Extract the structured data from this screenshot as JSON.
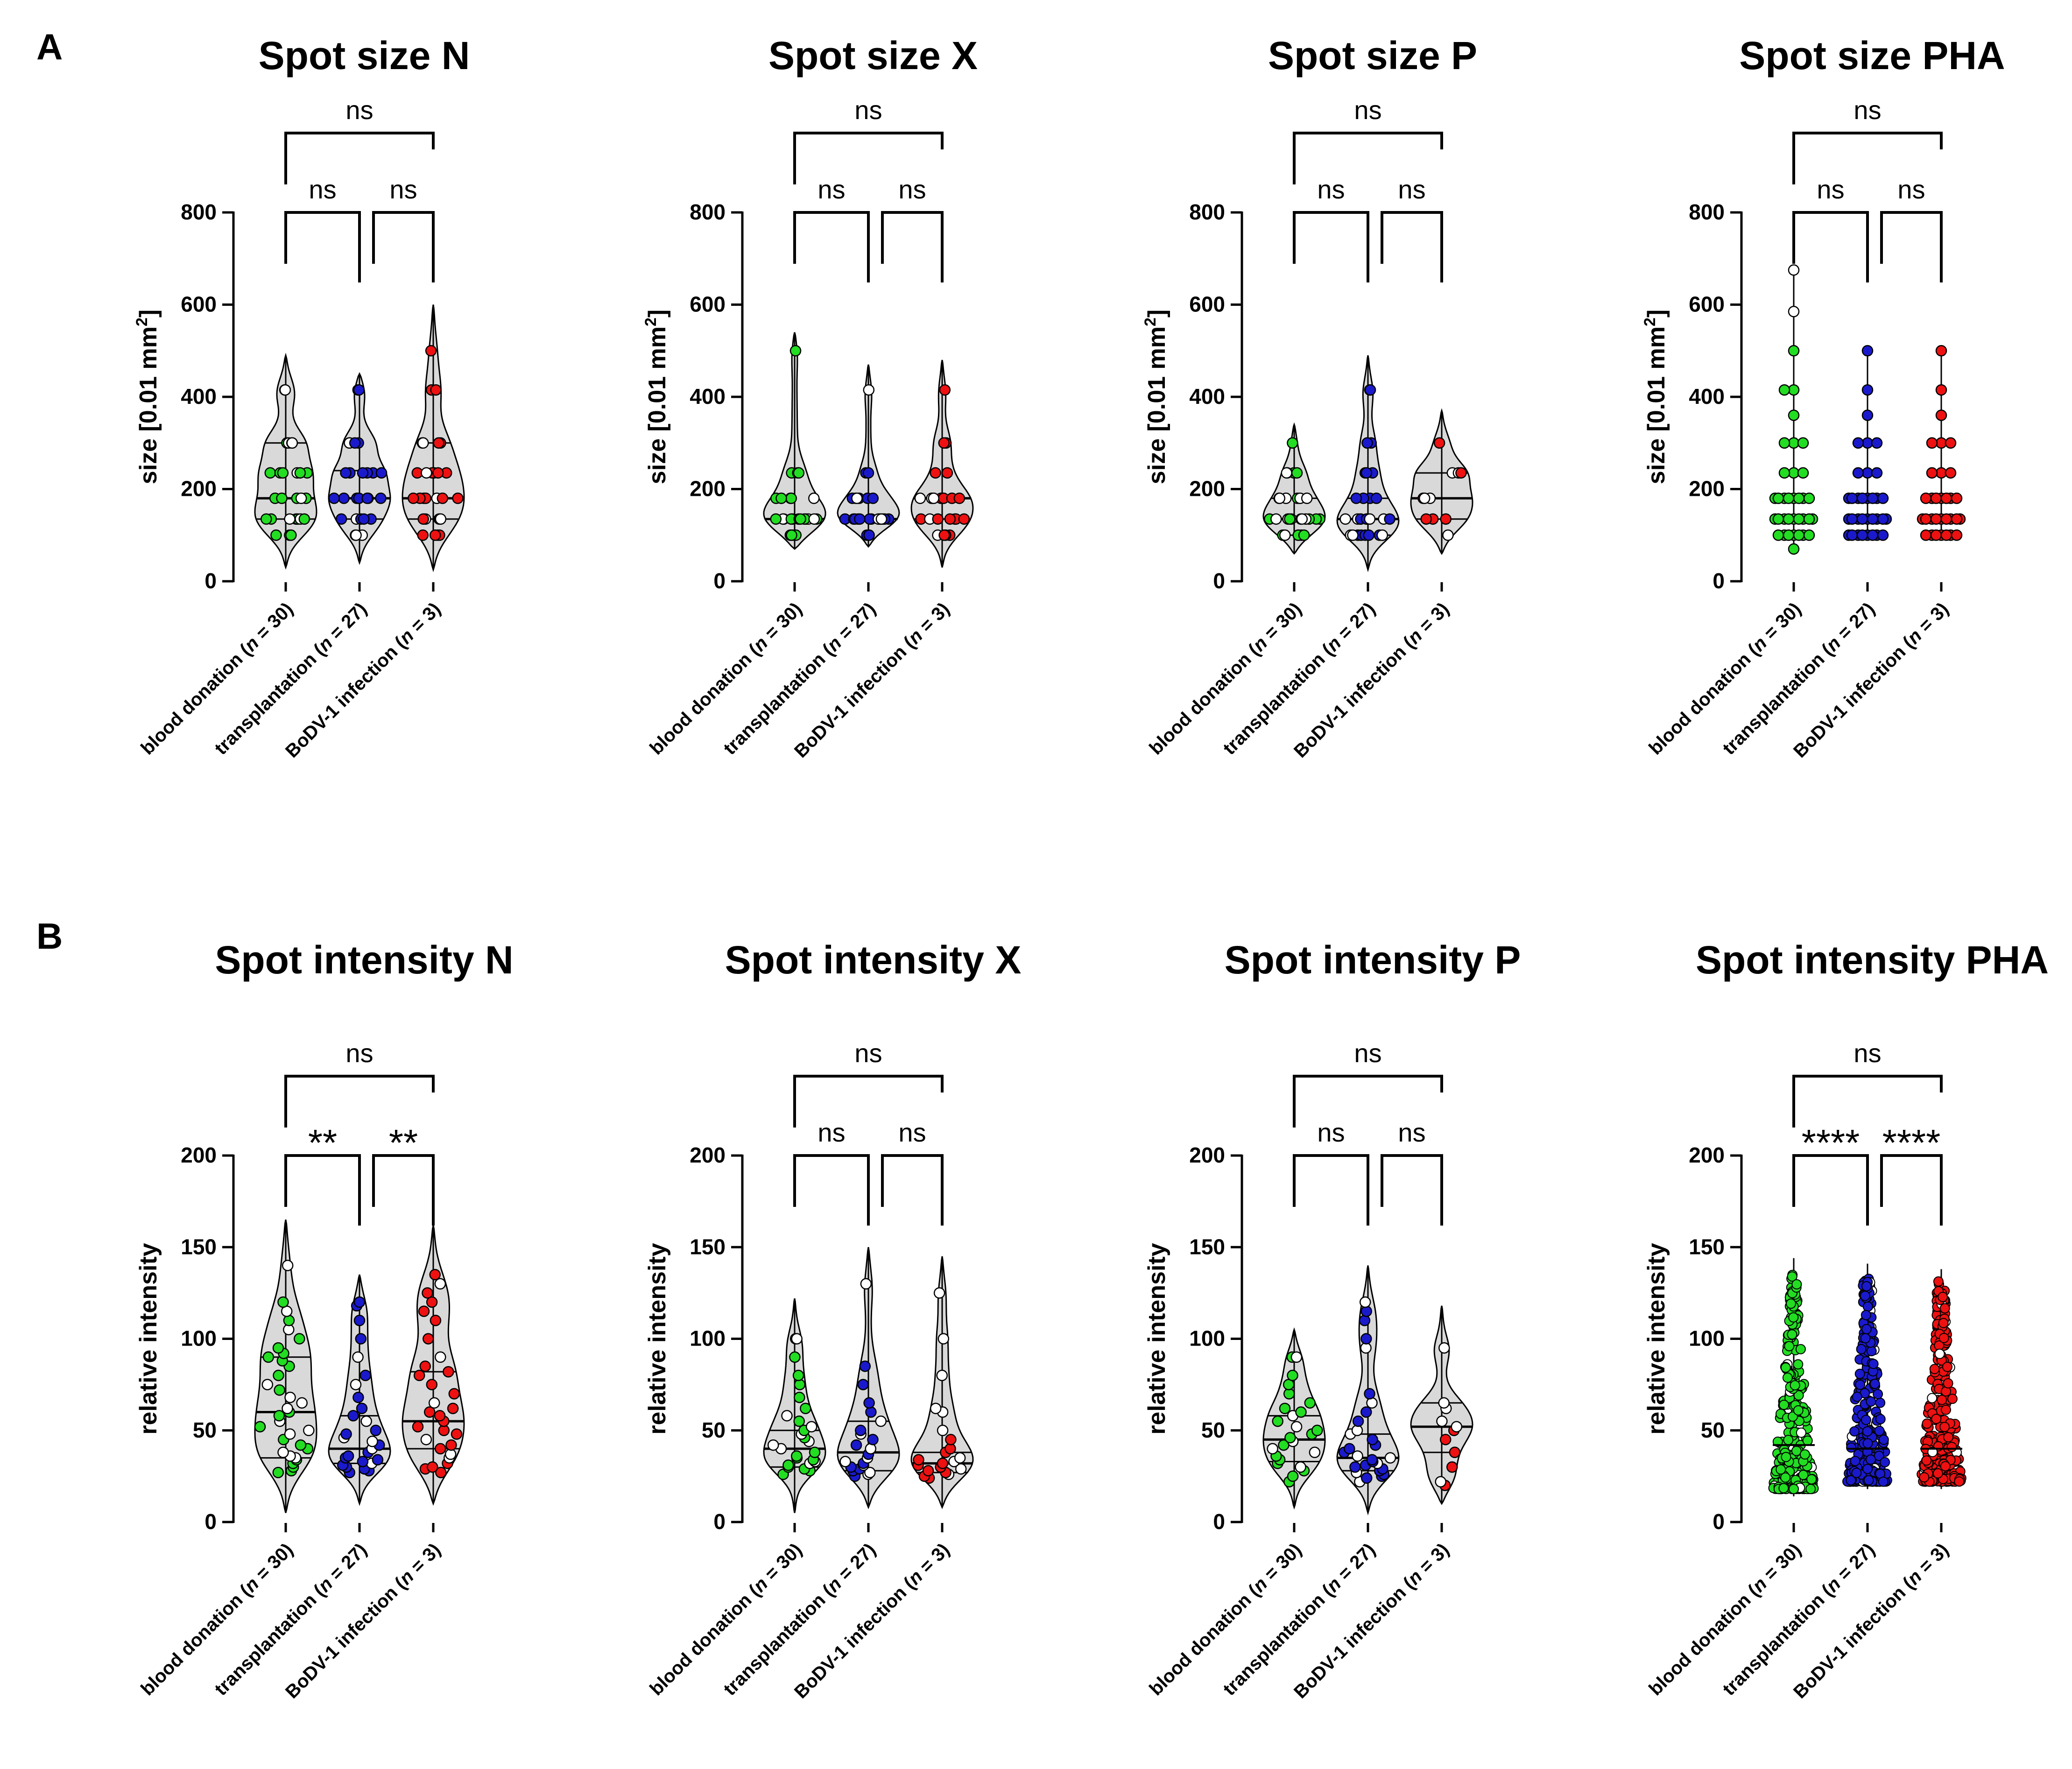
{
  "panels": [
    {
      "letter": "A"
    },
    {
      "letter": "B"
    }
  ],
  "group_colors": [
    "#22dd22",
    "#1a1acc",
    "#ee1111"
  ],
  "chart_data": [
    {
      "type": "violin",
      "panel": "A",
      "title": "Spot size N",
      "ylabel": "size [0.01 mm²]",
      "ylim": [
        0,
        800
      ],
      "yticks": [
        0,
        200,
        400,
        600,
        800
      ],
      "categories": [
        "blood donation (n = 30)",
        "transplantation (n = 27)",
        "BoDV-1 infection (n = 3)"
      ],
      "groups": [
        {
          "range": [
            30,
            490
          ],
          "median": 180,
          "q1": 135,
          "q3": 300,
          "values": [
            100,
            100,
            100,
            100,
            135,
            135,
            135,
            135,
            135,
            135,
            135,
            180,
            180,
            180,
            180,
            180,
            235,
            235,
            235,
            235,
            235,
            235,
            300,
            300,
            300,
            300,
            300,
            415,
            415,
            415
          ]
        },
        {
          "range": [
            40,
            450
          ],
          "median": 180,
          "q1": 135,
          "q3": 240,
          "values": [
            100,
            100,
            100,
            135,
            135,
            135,
            135,
            135,
            180,
            180,
            180,
            180,
            180,
            180,
            180,
            235,
            235,
            235,
            235,
            235,
            235,
            300,
            300,
            300,
            300,
            415,
            415
          ]
        },
        {
          "range": [
            25,
            600
          ],
          "median": 180,
          "q1": 135,
          "q3": 300,
          "values": [
            100,
            100,
            100,
            100,
            135,
            135,
            135,
            135,
            135,
            135,
            180,
            180,
            180,
            180,
            180,
            180,
            180,
            235,
            235,
            235,
            235,
            235,
            235,
            300,
            300,
            300,
            300,
            415,
            415,
            500
          ]
        }
      ],
      "comparisons": [
        {
          "from": 0,
          "to": 1,
          "label": "ns"
        },
        {
          "from": 1,
          "to": 2,
          "label": "ns"
        },
        {
          "from": 0,
          "to": 2,
          "label": "ns"
        }
      ]
    },
    {
      "type": "violin",
      "panel": "A",
      "title": "Spot size X",
      "ylabel": "size [0.01 mm²]",
      "ylim": [
        0,
        800
      ],
      "yticks": [
        0,
        200,
        400,
        600,
        800
      ],
      "categories": [
        "blood donation (n = 30)",
        "transplantation (n = 27)",
        "BoDV-1 infection (n = 3)"
      ],
      "groups": [
        {
          "range": [
            70,
            540
          ],
          "median": 135,
          "q1": 135,
          "q3": 135,
          "values": [
            100,
            100,
            100,
            100,
            100,
            135,
            135,
            135,
            135,
            135,
            135,
            135,
            135,
            135,
            135,
            135,
            135,
            135,
            135,
            180,
            180,
            180,
            180,
            180,
            235,
            235,
            235,
            500
          ]
        },
        {
          "range": [
            75,
            470
          ],
          "median": 135,
          "q1": 135,
          "q3": 135,
          "values": [
            100,
            100,
            135,
            135,
            135,
            135,
            135,
            135,
            135,
            135,
            135,
            135,
            135,
            135,
            135,
            135,
            180,
            180,
            180,
            180,
            180,
            180,
            235,
            235,
            415
          ]
        },
        {
          "range": [
            30,
            480
          ],
          "median": 180,
          "q1": 135,
          "q3": 180,
          "values": [
            100,
            100,
            100,
            100,
            135,
            135,
            135,
            135,
            135,
            135,
            135,
            180,
            180,
            180,
            180,
            180,
            180,
            180,
            235,
            235,
            300,
            300,
            415
          ]
        }
      ],
      "comparisons": [
        {
          "from": 0,
          "to": 1,
          "label": "ns"
        },
        {
          "from": 1,
          "to": 2,
          "label": "ns"
        },
        {
          "from": 0,
          "to": 2,
          "label": "ns"
        }
      ]
    },
    {
      "type": "violin",
      "panel": "A",
      "title": "Spot size P",
      "ylabel": "size [0.01 mm²]",
      "ylim": [
        0,
        800
      ],
      "yticks": [
        0,
        200,
        400,
        600,
        800
      ],
      "categories": [
        "blood donation (n = 30)",
        "transplantation (n = 27)",
        "BoDV-1 infection (n = 3)"
      ],
      "groups": [
        {
          "range": [
            60,
            340
          ],
          "median": 135,
          "q1": 100,
          "q3": 180,
          "values": [
            100,
            100,
            100,
            100,
            100,
            100,
            135,
            135,
            135,
            135,
            135,
            135,
            135,
            135,
            135,
            135,
            135,
            180,
            180,
            180,
            180,
            180,
            180,
            235,
            235,
            235,
            235,
            300
          ]
        },
        {
          "range": [
            25,
            490
          ],
          "median": 135,
          "q1": 100,
          "q3": 180,
          "values": [
            100,
            100,
            100,
            100,
            100,
            100,
            100,
            100,
            100,
            135,
            135,
            135,
            135,
            135,
            135,
            135,
            135,
            135,
            180,
            180,
            180,
            180,
            235,
            235,
            235,
            300,
            300,
            415,
            415
          ]
        },
        {
          "range": [
            60,
            370
          ],
          "median": 180,
          "q1": 135,
          "q3": 235,
          "values": [
            100,
            135,
            135,
            135,
            180,
            180,
            180,
            235,
            235,
            235,
            300
          ]
        }
      ],
      "comparisons": [
        {
          "from": 0,
          "to": 1,
          "label": "ns"
        },
        {
          "from": 1,
          "to": 2,
          "label": "ns"
        },
        {
          "from": 0,
          "to": 2,
          "label": "ns"
        }
      ]
    },
    {
      "type": "dotplot",
      "panel": "A",
      "title": "Spot size PHA",
      "ylabel": "size [0.01 mm²]",
      "ylim": [
        0,
        800
      ],
      "yticks": [
        0,
        200,
        400,
        600,
        800
      ],
      "categories": [
        "blood donation (n = 30)",
        "transplantation (n = 27)",
        "BoDV-1 infection (n = 3)"
      ],
      "groups": [
        {
          "values": [
            70,
            100,
            100,
            100,
            135,
            135,
            135,
            135,
            135,
            180,
            180,
            180,
            180,
            235,
            235,
            235,
            300,
            300,
            300,
            360,
            415,
            415,
            500,
            585,
            675
          ]
        },
        {
          "values": [
            100,
            100,
            100,
            100,
            135,
            135,
            135,
            135,
            135,
            180,
            180,
            180,
            180,
            235,
            235,
            235,
            300,
            300,
            300,
            360,
            415,
            500
          ]
        },
        {
          "values": [
            100,
            100,
            100,
            135,
            135,
            135,
            135,
            135,
            180,
            180,
            180,
            235,
            235,
            235,
            300,
            300,
            300,
            360,
            415,
            500
          ]
        }
      ],
      "comparisons": [
        {
          "from": 0,
          "to": 1,
          "label": "ns"
        },
        {
          "from": 1,
          "to": 2,
          "label": "ns"
        },
        {
          "from": 0,
          "to": 2,
          "label": "ns"
        }
      ]
    },
    {
      "type": "violin",
      "panel": "B",
      "title": "Spot intensity N",
      "ylabel": "relative intensity",
      "ylim": [
        0,
        200
      ],
      "yticks": [
        0,
        50,
        100,
        150,
        200
      ],
      "categories": [
        "blood donation (n = 30)",
        "transplantation (n = 27)",
        "BoDV-1 infection (n = 3)"
      ],
      "groups": [
        {
          "range": [
            5,
            165
          ],
          "median": 60,
          "q1": 35,
          "q3": 90,
          "values": [
            27,
            28,
            30,
            32,
            34,
            35,
            36,
            38,
            40,
            42,
            45,
            48,
            50,
            52,
            55,
            58,
            60,
            62,
            65,
            68,
            72,
            75,
            80,
            85,
            88,
            90,
            92,
            95,
            100,
            105,
            110,
            115,
            120,
            140
          ]
        },
        {
          "range": [
            10,
            135
          ],
          "median": 40,
          "q1": 32,
          "q3": 58,
          "values": [
            27,
            28,
            29,
            30,
            31,
            32,
            33,
            34,
            35,
            36,
            38,
            40,
            42,
            44,
            46,
            48,
            50,
            55,
            58,
            62,
            68,
            75,
            80,
            90,
            100,
            110,
            118,
            120
          ]
        },
        {
          "range": [
            10,
            162
          ],
          "median": 55,
          "q1": 40,
          "q3": 82,
          "values": [
            27,
            29,
            30,
            32,
            35,
            37,
            40,
            42,
            45,
            48,
            50,
            52,
            55,
            58,
            60,
            62,
            65,
            70,
            75,
            80,
            82,
            85,
            90,
            100,
            110,
            115,
            120,
            125,
            130,
            135
          ]
        }
      ],
      "comparisons": [
        {
          "from": 0,
          "to": 1,
          "label": "**"
        },
        {
          "from": 1,
          "to": 2,
          "label": "**"
        },
        {
          "from": 0,
          "to": 2,
          "label": "ns"
        }
      ]
    },
    {
      "type": "violin",
      "panel": "B",
      "title": "Spot intensity X",
      "ylabel": "relative intensity",
      "ylim": [
        0,
        200
      ],
      "yticks": [
        0,
        50,
        100,
        150,
        200
      ],
      "categories": [
        "blood donation (n = 30)",
        "transplantation (n = 27)",
        "BoDV-1 infection (n = 3)"
      ],
      "groups": [
        {
          "range": [
            5,
            122
          ],
          "median": 40,
          "q1": 30,
          "q3": 50,
          "values": [
            26,
            28,
            29,
            30,
            31,
            32,
            33,
            34,
            35,
            36,
            38,
            40,
            42,
            44,
            46,
            48,
            50,
            52,
            55,
            58,
            62,
            68,
            75,
            80,
            90,
            100,
            100
          ]
        },
        {
          "range": [
            8,
            150
          ],
          "median": 38,
          "q1": 28,
          "q3": 55,
          "values": [
            25,
            26,
            27,
            28,
            29,
            30,
            31,
            32,
            33,
            35,
            37,
            40,
            42,
            45,
            48,
            50,
            55,
            60,
            65,
            75,
            85,
            130
          ]
        },
        {
          "range": [
            8,
            145
          ],
          "median": 32,
          "q1": 27,
          "q3": 38,
          "values": [
            24,
            25,
            26,
            27,
            28,
            29,
            30,
            31,
            32,
            33,
            34,
            35,
            38,
            40,
            45,
            50,
            60,
            62,
            80,
            100,
            125
          ]
        }
      ],
      "comparisons": [
        {
          "from": 0,
          "to": 1,
          "label": "ns"
        },
        {
          "from": 1,
          "to": 2,
          "label": "ns"
        },
        {
          "from": 0,
          "to": 2,
          "label": "ns"
        }
      ]
    },
    {
      "type": "violin",
      "panel": "B",
      "title": "Spot intensity P",
      "ylabel": "relative intensity",
      "ylim": [
        0,
        200
      ],
      "yticks": [
        0,
        50,
        100,
        150,
        200
      ],
      "categories": [
        "blood donation (n = 30)",
        "transplantation (n = 27)",
        "BoDV-1 infection (n = 3)"
      ],
      "groups": [
        {
          "range": [
            8,
            105
          ],
          "median": 45,
          "q1": 33,
          "q3": 58,
          "values": [
            22,
            25,
            28,
            30,
            32,
            34,
            36,
            38,
            40,
            42,
            44,
            46,
            48,
            50,
            52,
            55,
            58,
            60,
            62,
            65,
            70,
            75,
            80,
            90,
            90
          ]
        },
        {
          "range": [
            5,
            140
          ],
          "median": 35,
          "q1": 28,
          "q3": 48,
          "values": [
            22,
            24,
            25,
            26,
            27,
            28,
            29,
            30,
            31,
            32,
            33,
            34,
            35,
            36,
            38,
            40,
            42,
            45,
            48,
            50,
            55,
            60,
            65,
            70,
            95,
            100,
            110,
            115,
            120
          ]
        },
        {
          "range": [
            10,
            118
          ],
          "median": 52,
          "q1": 38,
          "q3": 65,
          "values": [
            20,
            22,
            30,
            38,
            45,
            50,
            52,
            55,
            62,
            65,
            95
          ]
        }
      ],
      "comparisons": [
        {
          "from": 0,
          "to": 1,
          "label": "ns"
        },
        {
          "from": 1,
          "to": 2,
          "label": "ns"
        },
        {
          "from": 0,
          "to": 2,
          "label": "ns"
        }
      ]
    },
    {
      "type": "dotplot",
      "panel": "B",
      "title": "Spot intensity PHA",
      "ylabel": "relative intensity",
      "ylim": [
        0,
        200
      ],
      "yticks": [
        0,
        50,
        100,
        150,
        200
      ],
      "categories": [
        "blood donation (n = 30)",
        "transplantation (n = 27)",
        "BoDV-1 infection (n = 3)"
      ],
      "groups": [
        {
          "min": 18,
          "max": 138,
          "median": 42
        },
        {
          "min": 22,
          "max": 135,
          "median": 40
        },
        {
          "min": 22,
          "max": 132,
          "median": 40
        }
      ],
      "comparisons": [
        {
          "from": 0,
          "to": 1,
          "label": "****"
        },
        {
          "from": 1,
          "to": 2,
          "label": "****"
        },
        {
          "from": 0,
          "to": 2,
          "label": "ns"
        }
      ]
    }
  ]
}
